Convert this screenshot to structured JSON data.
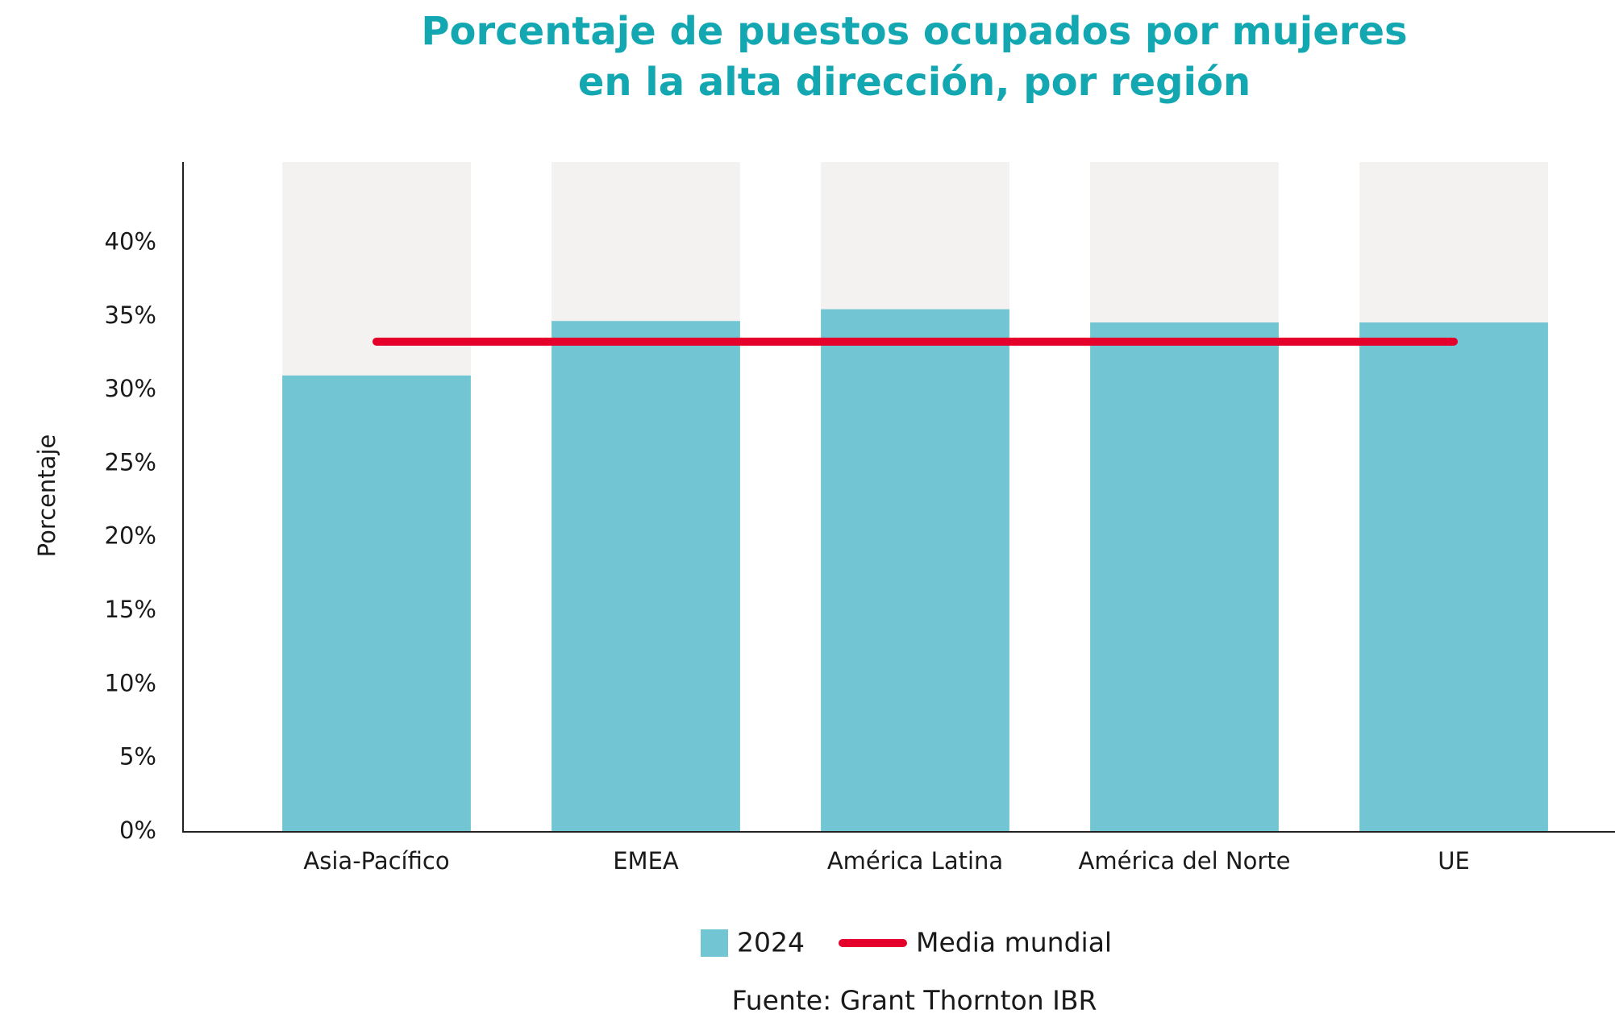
{
  "chart_data": {
    "type": "bar",
    "title": [
      "Porcentaje de puestos ocupados por mujeres",
      "en la alta dirección, por región"
    ],
    "y_label": "Porcentaje",
    "categories": [
      "Asia-Pacífico",
      "EMEA",
      "América Latina",
      "América del Norte",
      "UE"
    ],
    "series": [
      {
        "name": "2024",
        "color": "#72c5d2",
        "values": [
          31,
          34.7,
          35.5,
          34.6,
          34.6
        ]
      }
    ],
    "reference_line": {
      "name": "Media mundial",
      "value": 33.3,
      "color": "#e4002b"
    },
    "background_color": "#f3f2f1",
    "ylim": [
      0,
      45.5
    ],
    "yticks": [
      {
        "value": 0,
        "label": "0%"
      },
      {
        "value": 5,
        "label": "5%"
      },
      {
        "value": 10,
        "label": "10%"
      },
      {
        "value": 15,
        "label": "15%"
      },
      {
        "value": 20,
        "label": "20%"
      },
      {
        "value": 25,
        "label": "25%"
      },
      {
        "value": 30,
        "label": "30%"
      },
      {
        "value": 35,
        "label": "35%"
      },
      {
        "value": 40,
        "label": "40%"
      }
    ],
    "grid": false,
    "source": "Fuente: Grant Thornton IBR"
  }
}
